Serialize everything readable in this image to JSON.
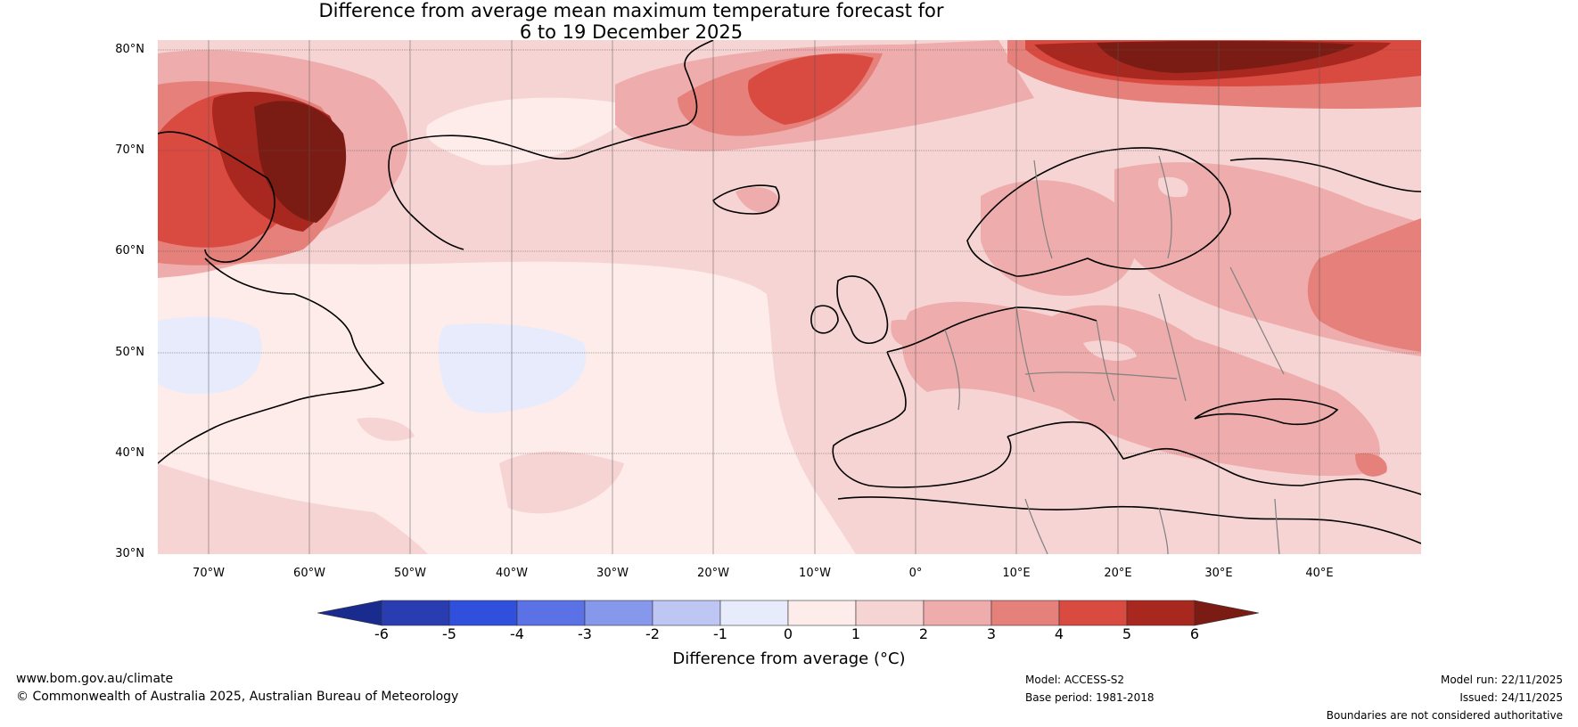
{
  "title_line1": "Difference from average mean maximum temperature forecast for",
  "title_line2": "6 to 19 December 2025",
  "map": {
    "lat_labels": [
      "80°N",
      "70°N",
      "60°N",
      "50°N",
      "40°N",
      "30°N"
    ],
    "lon_labels": [
      "70°W",
      "60°W",
      "50°W",
      "40°W",
      "30°W",
      "20°W",
      "10°W",
      "0°",
      "10°E",
      "20°E",
      "30°E",
      "40°E"
    ],
    "extent": {
      "lon_min": -75,
      "lon_max": 50,
      "lat_min": 30,
      "lat_max": 81
    }
  },
  "colorbar": {
    "ticks": [
      "-6",
      "-5",
      "-4",
      "-3",
      "-2",
      "-1",
      "0",
      "1",
      "2",
      "3",
      "4",
      "5",
      "6"
    ],
    "label": "Difference from average (°C)",
    "colors": {
      "under": "#1a2b8f",
      "bins": [
        "#2a3db0",
        "#2f4fdc",
        "#5a72e6",
        "#8698ec",
        "#bec7f4",
        "#e7ebfb",
        "#fdecea",
        "#f6d4d3",
        "#eeadac",
        "#e5807b",
        "#d94a41",
        "#a8281f"
      ],
      "over": "#7b1c14"
    }
  },
  "footer": {
    "left_line1": "www.bom.gov.au/climate",
    "left_line2": "© Commonwealth of Australia 2025, Australian Bureau of Meteorology",
    "model": "Model: ACCESS-S2",
    "base_period": "Base period: 1981-2018",
    "model_run": "Model run: 22/11/2025",
    "issued": "Issued: 24/11/2025",
    "disclaimer": "Boundaries are not considered authoritative"
  }
}
